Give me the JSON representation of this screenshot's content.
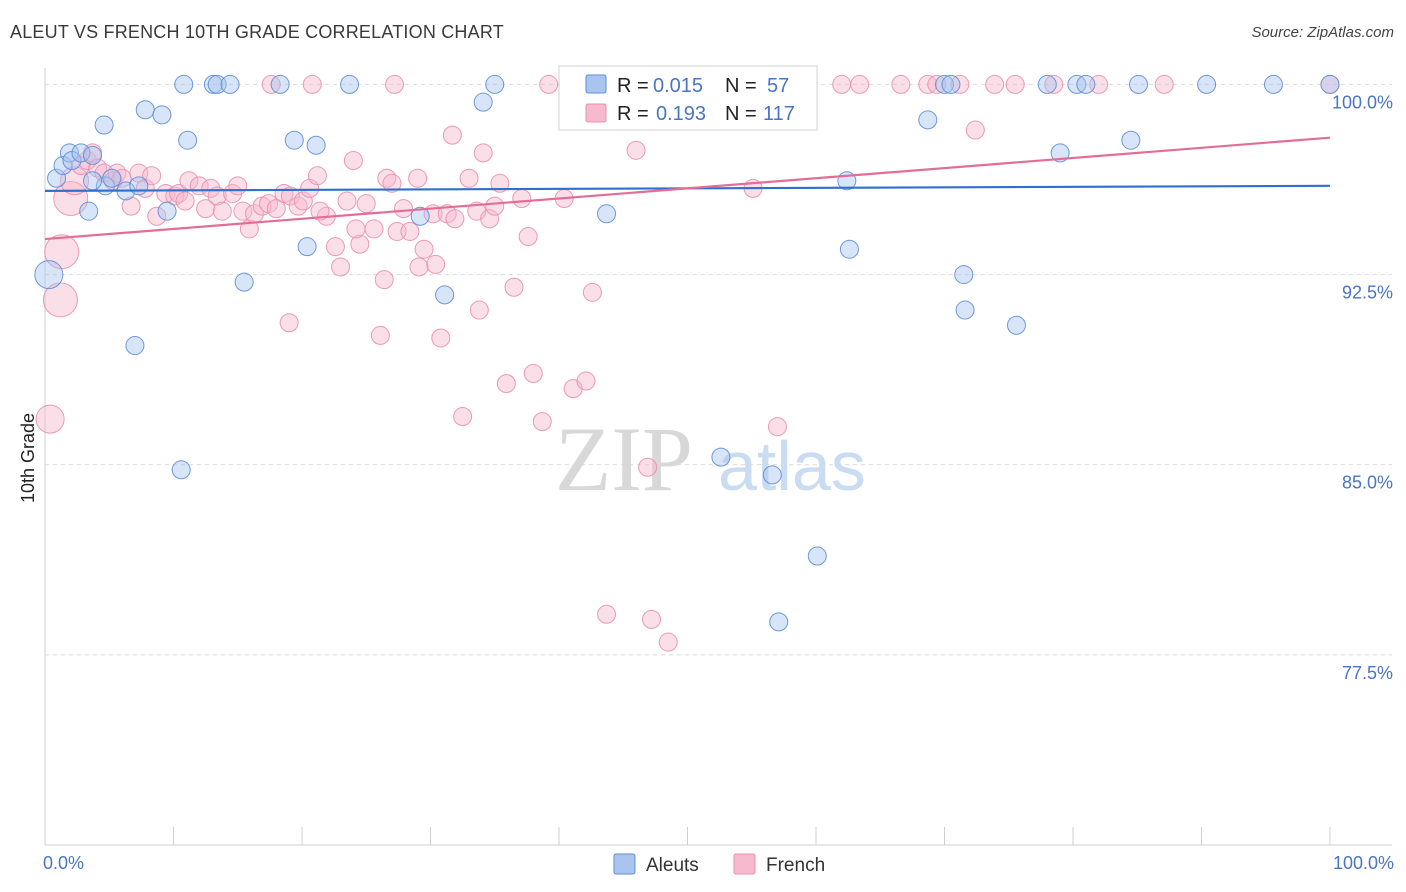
{
  "title": "ALEUT VS FRENCH 10TH GRADE CORRELATION CHART",
  "source": "Source: ZipAtlas.com",
  "watermark": {
    "zip": "ZIP",
    "atlas": "atlas"
  },
  "colors": {
    "aleut_fill": "#a8c4ef",
    "aleut_stroke": "#5e8fd8",
    "aleut_line": "#2f6fce",
    "french_fill": "#f7b9cd",
    "french_stroke": "#ea8fae",
    "french_line": "#e46d97",
    "tick_label": "#4a74c4",
    "grid": "#d9d9d9"
  },
  "stats_legend": [
    {
      "series": "Aleuts",
      "r_label": "R =",
      "r_value": "0.015",
      "n_label": "N =",
      "n_value": "57"
    },
    {
      "series": "French",
      "r_label": "R =",
      "r_value": "0.193",
      "n_label": "N =",
      "n_value": "117"
    }
  ],
  "chart_data": {
    "type": "scatter",
    "title": "ALEUT VS FRENCH 10TH GRADE CORRELATION CHART",
    "xlabel": "",
    "ylabel": "10th Grade",
    "xlim": [
      0,
      100
    ],
    "ylim": [
      70.0,
      101.2
    ],
    "x_tick_labels": [
      {
        "value": 0,
        "label": "0.0%"
      },
      {
        "value": 100,
        "label": "100.0%"
      }
    ],
    "y_ticks": [
      {
        "value": 100.0,
        "label": "100.0%"
      },
      {
        "value": 92.5,
        "label": "92.5%"
      },
      {
        "value": 85.0,
        "label": "85.0%"
      },
      {
        "value": 77.5,
        "label": "77.5%"
      }
    ],
    "grid": true,
    "legend": "bottom-center",
    "series": [
      {
        "name": "Aleuts",
        "trend": {
          "x": [
            0,
            100
          ],
          "y": [
            95.8,
            96.0
          ]
        },
        "points": [
          [
            0.3,
            92.5,
            14
          ],
          [
            0.9,
            96.3,
            9
          ],
          [
            1.4,
            96.8,
            9
          ],
          [
            1.9,
            97.3,
            9
          ],
          [
            2.1,
            97.0,
            9
          ],
          [
            2.8,
            97.3,
            9
          ],
          [
            3.4,
            95.0,
            9
          ],
          [
            3.7,
            97.2,
            9
          ],
          [
            4.6,
            98.4,
            9
          ],
          [
            4.7,
            96.0,
            9
          ],
          [
            6.3,
            95.8,
            9
          ],
          [
            7.3,
            96.0,
            9
          ],
          [
            7.0,
            89.7,
            9
          ],
          [
            7.8,
            99.0,
            9
          ],
          [
            9.1,
            98.8,
            9
          ],
          [
            9.5,
            95.0,
            9
          ],
          [
            10.6,
            84.8,
            9
          ],
          [
            10.8,
            100.0,
            9
          ],
          [
            11.1,
            97.8,
            9
          ],
          [
            13.1,
            100.0,
            9
          ],
          [
            13.4,
            100.0,
            9
          ],
          [
            14.4,
            100.0,
            9
          ],
          [
            15.5,
            92.2,
            9
          ],
          [
            18.3,
            100.0,
            9
          ],
          [
            19.4,
            97.8,
            9
          ],
          [
            20.4,
            93.6,
            9
          ],
          [
            21.1,
            97.6,
            9
          ],
          [
            23.7,
            100.0,
            9
          ],
          [
            29.2,
            94.8,
            9
          ],
          [
            31.1,
            91.7,
            9
          ],
          [
            34.1,
            99.3,
            9
          ],
          [
            35.0,
            100.0,
            9
          ],
          [
            43.7,
            94.9,
            9
          ],
          [
            52.4,
            100.0,
            9
          ],
          [
            52.6,
            85.3,
            9
          ],
          [
            56.6,
            84.6,
            9
          ],
          [
            57.1,
            78.8,
            9
          ],
          [
            60.1,
            81.4,
            9
          ],
          [
            62.4,
            96.2,
            9
          ],
          [
            62.6,
            93.5,
            9
          ],
          [
            68.7,
            98.6,
            9
          ],
          [
            70.0,
            100.0,
            9
          ],
          [
            70.5,
            100.0,
            9
          ],
          [
            71.5,
            92.5,
            9
          ],
          [
            71.6,
            91.1,
            9
          ],
          [
            75.6,
            90.5,
            9
          ],
          [
            78.0,
            100.0,
            9
          ],
          [
            79.0,
            97.3,
            9
          ],
          [
            80.3,
            100.0,
            9
          ],
          [
            81.0,
            100.0,
            9
          ],
          [
            84.5,
            97.8,
            9
          ],
          [
            85.1,
            100.0,
            9
          ],
          [
            90.4,
            100.0,
            9
          ],
          [
            95.6,
            100.0,
            9
          ],
          [
            100.0,
            100.0,
            9
          ],
          [
            3.7,
            96.2,
            9
          ],
          [
            5.2,
            96.3,
            9
          ]
        ]
      },
      {
        "name": "French",
        "trend": {
          "x": [
            0,
            100
          ],
          "y": [
            93.9,
            97.9
          ]
        },
        "points": [
          [
            0.4,
            86.8,
            14
          ],
          [
            1.2,
            91.5,
            17
          ],
          [
            1.3,
            93.4,
            17
          ],
          [
            2.0,
            95.5,
            17
          ],
          [
            2.3,
            96.2,
            14
          ],
          [
            2.8,
            96.8,
            9
          ],
          [
            3.3,
            97.0,
            9
          ],
          [
            3.7,
            97.3,
            9
          ],
          [
            4.1,
            96.7,
            9
          ],
          [
            4.6,
            96.5,
            9
          ],
          [
            5.3,
            96.2,
            9
          ],
          [
            5.6,
            96.5,
            9
          ],
          [
            6.0,
            96.3,
            9
          ],
          [
            6.7,
            95.2,
            9
          ],
          [
            7.3,
            96.5,
            9
          ],
          [
            7.8,
            95.9,
            9
          ],
          [
            8.3,
            96.4,
            9
          ],
          [
            8.7,
            94.8,
            9
          ],
          [
            9.4,
            95.7,
            9
          ],
          [
            10.1,
            95.6,
            9
          ],
          [
            10.4,
            95.7,
            9
          ],
          [
            10.9,
            95.4,
            9
          ],
          [
            11.2,
            96.2,
            9
          ],
          [
            12.0,
            96.0,
            9
          ],
          [
            12.5,
            95.1,
            9
          ],
          [
            12.9,
            95.9,
            9
          ],
          [
            13.4,
            95.6,
            9
          ],
          [
            13.8,
            95.0,
            9
          ],
          [
            14.6,
            95.7,
            9
          ],
          [
            15.0,
            96.0,
            9
          ],
          [
            15.4,
            95.0,
            9
          ],
          [
            15.9,
            94.3,
            9
          ],
          [
            16.3,
            94.9,
            9
          ],
          [
            16.9,
            95.2,
            9
          ],
          [
            17.4,
            95.3,
            9
          ],
          [
            18.0,
            95.1,
            9
          ],
          [
            18.6,
            95.7,
            9
          ],
          [
            19.1,
            95.6,
            9
          ],
          [
            19.7,
            95.2,
            9
          ],
          [
            20.1,
            95.4,
            9
          ],
          [
            20.6,
            95.9,
            9
          ],
          [
            21.2,
            96.4,
            9
          ],
          [
            21.9,
            94.8,
            9
          ],
          [
            22.6,
            93.6,
            9
          ],
          [
            23.0,
            92.8,
            9
          ],
          [
            23.5,
            95.4,
            9
          ],
          [
            24.0,
            97.0,
            9
          ],
          [
            24.5,
            93.7,
            9
          ],
          [
            25.0,
            95.3,
            9
          ],
          [
            25.6,
            94.3,
            9
          ],
          [
            26.1,
            90.1,
            9
          ],
          [
            26.6,
            96.3,
            9
          ],
          [
            27.0,
            96.1,
            9
          ],
          [
            27.4,
            94.2,
            9
          ],
          [
            27.9,
            95.1,
            9
          ],
          [
            28.4,
            94.2,
            9
          ],
          [
            29.0,
            96.3,
            9
          ],
          [
            29.5,
            93.5,
            9
          ],
          [
            30.2,
            94.9,
            9
          ],
          [
            30.4,
            92.9,
            9
          ],
          [
            30.8,
            90.0,
            9
          ],
          [
            31.3,
            94.9,
            9
          ],
          [
            31.9,
            94.7,
            9
          ],
          [
            32.5,
            86.9,
            9
          ],
          [
            33.0,
            96.3,
            9
          ],
          [
            33.6,
            95.0,
            9
          ],
          [
            34.1,
            97.3,
            9
          ],
          [
            34.6,
            94.7,
            9
          ],
          [
            35.0,
            95.2,
            9
          ],
          [
            35.4,
            96.1,
            9
          ],
          [
            35.9,
            88.2,
            9
          ],
          [
            36.5,
            92.0,
            9
          ],
          [
            37.1,
            95.5,
            9
          ],
          [
            37.6,
            94.0,
            9
          ],
          [
            38.0,
            88.6,
            9
          ],
          [
            38.7,
            86.7,
            9
          ],
          [
            39.2,
            100.0,
            9
          ],
          [
            40.4,
            95.5,
            9
          ],
          [
            41.1,
            88.0,
            9
          ],
          [
            42.1,
            88.3,
            9
          ],
          [
            42.6,
            91.8,
            9
          ],
          [
            43.7,
            79.1,
            9
          ],
          [
            45.4,
            100.0,
            9
          ],
          [
            46.0,
            97.4,
            9
          ],
          [
            46.9,
            84.9,
            9
          ],
          [
            47.2,
            78.9,
            9
          ],
          [
            48.5,
            78.0,
            9
          ],
          [
            49.6,
            100.0,
            9
          ],
          [
            52.6,
            100.0,
            9
          ],
          [
            55.1,
            95.9,
            9
          ],
          [
            56.5,
            100.0,
            9
          ],
          [
            57.0,
            86.5,
            9
          ],
          [
            59.0,
            100.0,
            9
          ],
          [
            62.0,
            100.0,
            9
          ],
          [
            63.4,
            100.0,
            9
          ],
          [
            66.6,
            100.0,
            9
          ],
          [
            68.7,
            100.0,
            9
          ],
          [
            69.4,
            100.0,
            9
          ],
          [
            71.2,
            100.0,
            9
          ],
          [
            72.4,
            98.2,
            9
          ],
          [
            73.9,
            100.0,
            9
          ],
          [
            75.5,
            100.0,
            9
          ],
          [
            78.5,
            100.0,
            9
          ],
          [
            82.0,
            100.0,
            9
          ],
          [
            87.1,
            100.0,
            9
          ],
          [
            100.0,
            100.0,
            9
          ],
          [
            44.0,
            100.0,
            9
          ],
          [
            17.6,
            100.0,
            9
          ],
          [
            20.8,
            100.0,
            9
          ],
          [
            27.2,
            100.0,
            9
          ],
          [
            31.7,
            98.0,
            9
          ],
          [
            19.0,
            90.6,
            9
          ],
          [
            26.4,
            92.3,
            9
          ],
          [
            29.1,
            92.8,
            9
          ],
          [
            24.2,
            94.3,
            9
          ],
          [
            33.8,
            91.1,
            9
          ],
          [
            21.4,
            95.0,
            9
          ]
        ]
      }
    ]
  },
  "bottom_legend": [
    {
      "series": "Aleuts",
      "label": "Aleuts"
    },
    {
      "series": "French",
      "label": "French"
    }
  ]
}
